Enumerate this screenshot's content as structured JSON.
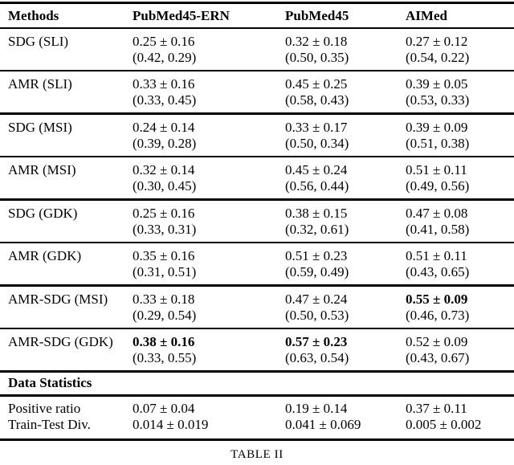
{
  "table": {
    "caption": "TABLE II",
    "header": {
      "methods": "Methods",
      "col1": "PubMed45-ERN",
      "col2": "PubMed45",
      "col3": "AIMed"
    },
    "rows": [
      {
        "method": "SDG (SLI)",
        "cells": [
          {
            "mean": "0.25 ± 0.16",
            "ci": "(0.42, 0.29)",
            "bold": false
          },
          {
            "mean": "0.32 ± 0.18",
            "ci": "(0.50, 0.35)",
            "bold": false
          },
          {
            "mean": "0.27 ± 0.12",
            "ci": "(0.54, 0.22)",
            "bold": false
          }
        ]
      },
      {
        "method": "AMR (SLI)",
        "cells": [
          {
            "mean": "0.33 ± 0.16",
            "ci": "(0.33, 0.45)",
            "bold": false
          },
          {
            "mean": "0.45 ± 0.25",
            "ci": "(0.58, 0.43)",
            "bold": false
          },
          {
            "mean": "0.39 ± 0.05",
            "ci": "(0.53, 0.33)",
            "bold": false
          }
        ]
      },
      {
        "method": "SDG (MSI)",
        "cells": [
          {
            "mean": "0.24 ± 0.14",
            "ci": "(0.39, 0.28)",
            "bold": false
          },
          {
            "mean": "0.33 ± 0.17",
            "ci": "(0.50, 0.34)",
            "bold": false
          },
          {
            "mean": "0.39 ± 0.09",
            "ci": "(0.51, 0.38)",
            "bold": false
          }
        ]
      },
      {
        "method": "AMR (MSI)",
        "cells": [
          {
            "mean": "0.32 ± 0.14",
            "ci": "(0.30, 0.45)",
            "bold": false
          },
          {
            "mean": "0.45 ± 0.24",
            "ci": "(0.56, 0.44)",
            "bold": false
          },
          {
            "mean": "0.51 ± 0.11",
            "ci": "(0.49, 0.56)",
            "bold": false
          }
        ]
      },
      {
        "method": "SDG (GDK)",
        "cells": [
          {
            "mean": "0.25 ± 0.16",
            "ci": "(0.33, 0.31)",
            "bold": false
          },
          {
            "mean": "0.38 ± 0.15",
            "ci": "(0.32, 0.61)",
            "bold": false
          },
          {
            "mean": "0.47 ± 0.08",
            "ci": "(0.41, 0.58)",
            "bold": false
          }
        ]
      },
      {
        "method": "AMR (GDK)",
        "cells": [
          {
            "mean": "0.35 ± 0.16",
            "ci": "(0.31, 0.51)",
            "bold": false
          },
          {
            "mean": "0.51 ± 0.23",
            "ci": "(0.59, 0.49)",
            "bold": false
          },
          {
            "mean": "0.51 ± 0.11",
            "ci": "(0.43, 0.65)",
            "bold": false
          }
        ]
      },
      {
        "method": "AMR-SDG (MSI)",
        "cells": [
          {
            "mean": "0.33 ± 0.18",
            "ci": "(0.29, 0.54)",
            "bold": false
          },
          {
            "mean": "0.47 ± 0.24",
            "ci": "(0.50, 0.53)",
            "bold": false
          },
          {
            "mean": "0.55 ± 0.09",
            "ci": "(0.46, 0.73)",
            "bold": true
          }
        ]
      },
      {
        "method": "AMR-SDG (GDK)",
        "cells": [
          {
            "mean": "0.38 ± 0.16",
            "ci": "(0.33, 0.55)",
            "bold": true
          },
          {
            "mean": "0.57 ± 0.23",
            "ci": "(0.63, 0.54)",
            "bold": true
          },
          {
            "mean": "0.52 ± 0.09",
            "ci": "(0.43, 0.67)",
            "bold": false
          }
        ]
      }
    ],
    "section_header": "Data Statistics",
    "stats": [
      {
        "label": "Positive ratio",
        "values": [
          "0.07 ± 0.04",
          "0.19 ± 0.14",
          "0.37 ± 0.11"
        ]
      },
      {
        "label": "Train-Test Div.",
        "values": [
          "0.014 ± 0.019",
          "0.041 ± 0.069",
          "0.005 ± 0.002"
        ]
      }
    ]
  }
}
